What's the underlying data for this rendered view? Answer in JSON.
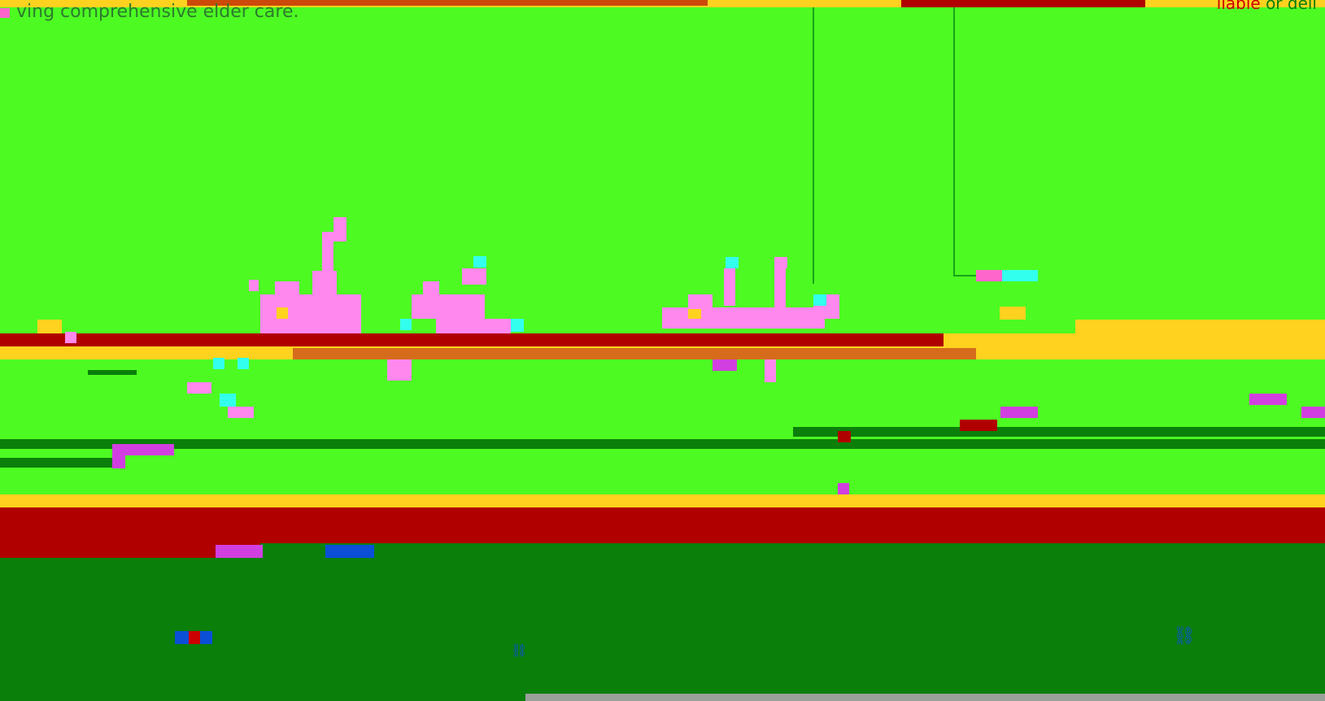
{
  "header": {
    "subtitle": "ving comprehensive elder care.",
    "top_right_prefix": "ilable",
    "top_right_suffix": "or deli"
  },
  "colors": {
    "background": "#4dfb22",
    "accent_yellow": "#ffd21f",
    "accent_red": "#b00000",
    "accent_dark_green": "#0a7f0a",
    "accent_pink": "#ff88ee",
    "accent_cyan": "#33ffee",
    "accent_blue": "#0a4fd6"
  },
  "icons": {
    "footer_icon_a": "link-icon",
    "footer_icon_b": "link-icon"
  }
}
